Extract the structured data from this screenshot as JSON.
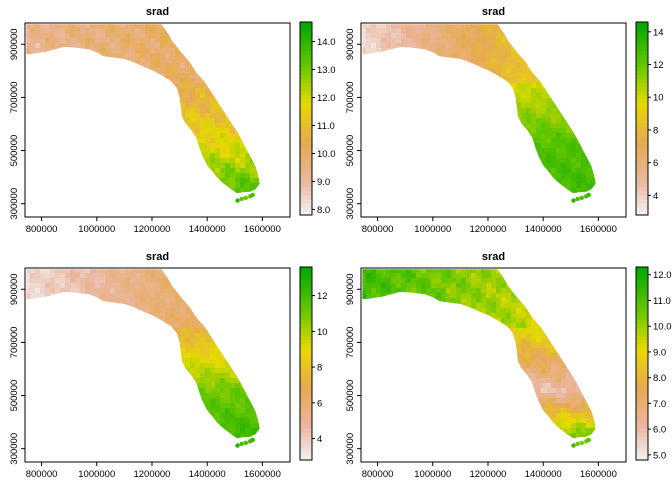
{
  "chart_data": [
    {
      "type": "heatmap",
      "title": "srad",
      "xlabel": "",
      "ylabel": "",
      "xlim": [
        740000,
        1700000
      ],
      "ylim": [
        250000,
        980000
      ],
      "x_ticks": [
        "800000",
        "1000000",
        "1200000",
        "1400000",
        "1600000"
      ],
      "y_ticks": [
        "300000",
        "500000",
        "700000",
        "900000"
      ],
      "legend_ticks": [
        "8.0",
        "9.0",
        "10.0",
        "11.0",
        "12.0",
        "13.0",
        "14.0"
      ],
      "legend_range": [
        7.8,
        14.7
      ],
      "field": {
        "west": 9.3,
        "north": 10.3,
        "peninsula": 11.8,
        "south": 13.6
      }
    },
    {
      "type": "heatmap",
      "title": "srad",
      "xlabel": "",
      "ylabel": "",
      "xlim": [
        740000,
        1700000
      ],
      "ylim": [
        250000,
        980000
      ],
      "x_ticks": [
        "800000",
        "1000000",
        "1200000",
        "1400000",
        "1600000"
      ],
      "y_ticks": [
        "300000",
        "500000",
        "700000",
        "900000"
      ],
      "legend_ticks": [
        "4",
        "6",
        "8",
        "10",
        "12",
        "14"
      ],
      "legend_range": [
        2.8,
        14.6
      ],
      "field": {
        "west": 3.6,
        "north": 9.8,
        "peninsula": 12.5,
        "south": 13.0
      }
    },
    {
      "type": "heatmap",
      "title": "srad",
      "xlabel": "",
      "ylabel": "",
      "xlim": [
        740000,
        1700000
      ],
      "ylim": [
        250000,
        980000
      ],
      "x_ticks": [
        "800000",
        "1000000",
        "1200000",
        "1400000",
        "1600000"
      ],
      "y_ticks": [
        "300000",
        "500000",
        "700000",
        "900000"
      ],
      "legend_ticks": [
        "4",
        "6",
        "8",
        "10",
        "12"
      ],
      "legend_range": [
        2.8,
        13.6
      ],
      "field": {
        "west": 3.5,
        "north": 7.0,
        "peninsula": 11.0,
        "south": 12.3
      }
    },
    {
      "type": "heatmap",
      "title": "srad",
      "xlabel": "",
      "ylabel": "",
      "xlim": [
        740000,
        1700000
      ],
      "ylim": [
        250000,
        980000
      ],
      "x_ticks": [
        "800000",
        "1000000",
        "1200000",
        "1400000",
        "1600000"
      ],
      "y_ticks": [
        "300000",
        "500000",
        "700000",
        "900000"
      ],
      "legend_ticks": [
        "5.0",
        "6.0",
        "7.0",
        "8.0",
        "9.0",
        "10.0",
        "11.0",
        "12.0"
      ],
      "legend_range": [
        4.8,
        12.3
      ],
      "field": {
        "west": 11.2,
        "north": 9.2,
        "peninsula": 6.0,
        "south": 10.8
      }
    }
  ]
}
